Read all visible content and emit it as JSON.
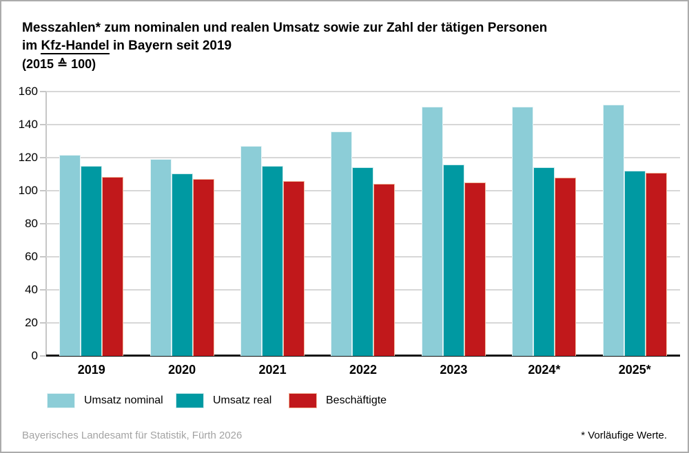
{
  "title": {
    "line1": "Messzahlen* zum nominalen und realen Umsatz sowie zur Zahl der tätigen Personen",
    "line2_pre": "im ",
    "line2_underlined": "Kfz-Handel",
    "line2_post": " in Bayern seit 2019",
    "line3": "(2015 ≙ 100)"
  },
  "chart_data": {
    "type": "bar",
    "categories": [
      "2019",
      "2020",
      "2021",
      "2022",
      "2023",
      "2024*",
      "2025*"
    ],
    "series": [
      {
        "name": "Umsatz nominal",
        "color": "#8CCDD7",
        "edge_color": "#e6f4f6",
        "values": [
          121.5,
          119,
          127,
          136,
          151,
          151,
          152
        ]
      },
      {
        "name": "Umsatz real",
        "color": "#0099A2",
        "edge_color": "#c9e9ec",
        "values": [
          115,
          110.5,
          115,
          114,
          116,
          114,
          112
        ]
      },
      {
        "name": "Beschäftigte",
        "color": "#C1181B",
        "edge_color": "#f2b89c",
        "values": [
          108.5,
          107,
          106,
          104,
          105,
          108,
          111
        ]
      }
    ],
    "ylim": [
      0,
      160
    ],
    "yticks": [
      0,
      20,
      40,
      60,
      80,
      100,
      120,
      140,
      160
    ],
    "grid": true,
    "legend_position": "bottom",
    "xlabel": "",
    "ylabel": ""
  },
  "footer": {
    "source": "Bayerisches Landesamt für Statistik, Fürth 2026",
    "note": "* Vorläufige Werte."
  }
}
